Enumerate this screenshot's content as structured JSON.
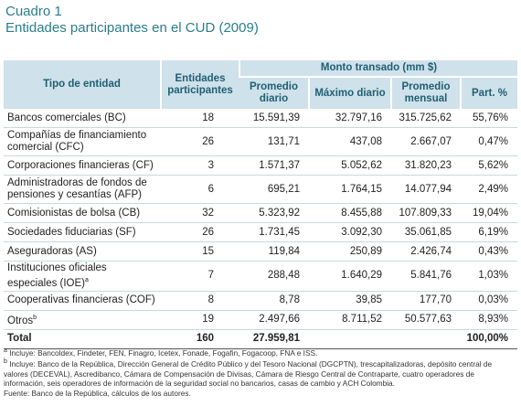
{
  "title": {
    "label": "Cuadro 1",
    "subtitle": "Entidades participantes en el CUD (2009)"
  },
  "table": {
    "headers": {
      "type": "Tipo de entidad",
      "count": "Entidades participantes",
      "group": "Monto transado (mm $)",
      "avg": "Promedio diario",
      "max": "Máximo diario",
      "monthly": "Promedio mensual",
      "share": "Part. %"
    },
    "rows": [
      {
        "cells": [
          "Bancos comerciales (BC)",
          "18",
          "15.591,39",
          "32.797,16",
          "315.725,62",
          "55,76%"
        ]
      },
      {
        "cells": [
          "Compañías de financiamiento comercial (CFC)",
          "26",
          "131,71",
          "437,08",
          "2.667,07",
          "0,47%"
        ]
      },
      {
        "cells": [
          "Corporaciones financieras (CF)",
          "3",
          "1.571,37",
          "5.052,62",
          "31.820,23",
          "5,62%"
        ]
      },
      {
        "cells": [
          "Administradoras de fondos de pensiones y cesantías (AFP)",
          "6",
          "695,21",
          "1.764,15",
          "14.077,94",
          "2,49%"
        ]
      },
      {
        "cells": [
          "Comisionistas de bolsa (CB)",
          "32",
          "5.323,92",
          "8.455,88",
          "107.809,33",
          "19,04%"
        ]
      },
      {
        "cells": [
          "Sociedades fiduciarias (SF)",
          "26",
          "1.731,45",
          "3.092,30",
          "35.061,85",
          "6,19%"
        ]
      },
      {
        "cells": [
          "Aseguradoras (AS)",
          "15",
          "119,84",
          "250,89",
          "2.426,74",
          "0,43%"
        ]
      },
      {
        "cells": [
          "Instituciones oficiales especiales (IOE)",
          "7",
          "288,48",
          "1.640,29",
          "5.841,76",
          "1,03%"
        ],
        "note": "a"
      },
      {
        "cells": [
          "Cooperativas financieras (COF)",
          "8",
          "8,78",
          "39,85",
          "177,70",
          "0,03%"
        ]
      },
      {
        "cells": [
          "Otros",
          "19",
          "2.497,66",
          "8.711,52",
          "50.577,63",
          "8,93%"
        ],
        "note": "b"
      }
    ],
    "total": {
      "label": "Total",
      "count": "160",
      "avg": "27.959,81",
      "share": "100,00%"
    }
  },
  "footnotes": [
    {
      "mark": "a",
      "text": "Incluye: Bancoldex, Findeter, FEN, Finagro, Icetex, Fonade, Fogafin, Fogacoop, FNA e ISS."
    },
    {
      "mark": "b",
      "text": "Incluye: Banco de la República, Dirección General de Crédito Público y del Tesoro Nacional (DGCPTN), trescapitalizadoras, depósito central de valores (DECEVAL), Ascredibanco, Cámara de Compensación de Divisas, Cámara de Riesgo Central de Contraparte, cuatro operadores de información, seis operadores de información de la seguridad social no bancarios, casas de cambio y ACH Colombia."
    }
  ],
  "source": "Fuente: Banco de la República, cálculos de los autores."
}
